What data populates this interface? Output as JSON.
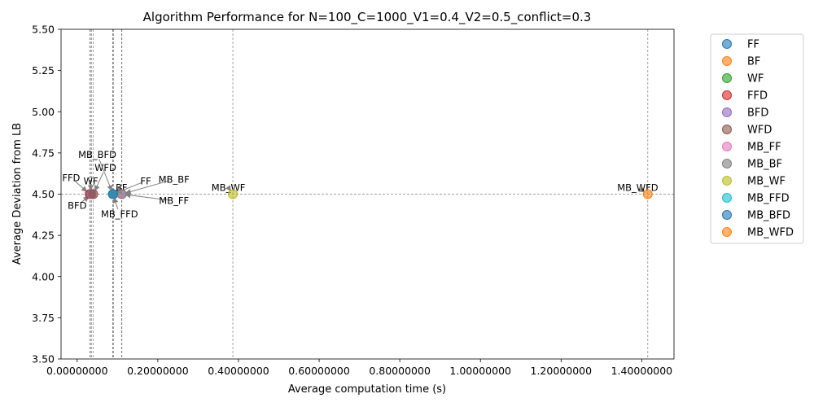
{
  "chart_data": {
    "type": "scatter",
    "title": "Algorithm Performance for N=100_C=1000_V1=0.4_V2=0.5_conflict=0.3",
    "xlabel": "Average computation time (s)",
    "ylabel": "Average Deviation from LB",
    "xlim": [
      -0.04,
      1.48
    ],
    "ylim": [
      3.5,
      5.5
    ],
    "x_ticks": [
      0.0,
      0.2,
      0.4,
      0.6,
      0.8,
      1.0,
      1.2,
      1.4
    ],
    "x_tick_labels": [
      "0.00000000",
      "0.20000000",
      "0.40000000",
      "0.60000000",
      "0.80000000",
      "1.00000000",
      "1.20000000",
      "1.40000000"
    ],
    "y_ticks": [
      3.5,
      3.75,
      4.0,
      4.25,
      4.5,
      4.75,
      5.0,
      5.25,
      5.5
    ],
    "y_tick_labels": [
      "3.50",
      "3.75",
      "4.00",
      "4.25",
      "4.50",
      "4.75",
      "5.00",
      "5.25",
      "5.50"
    ],
    "grid": "dashed reference lines through each point",
    "legend_position": "outside right",
    "series": [
      {
        "name": "FF",
        "x": 0.089,
        "y": 4.5,
        "color": "#1f77b4",
        "label": "FF",
        "label_x": 0.17,
        "label_y": 4.58
      },
      {
        "name": "BF",
        "x": 0.09,
        "y": 4.5,
        "color": "#ff7f0e",
        "label": "BF",
        "label_x": 0.11,
        "label_y": 4.54
      },
      {
        "name": "WF",
        "x": 0.033,
        "y": 4.5,
        "color": "#2ca02c",
        "label": "WF",
        "label_x": 0.034,
        "label_y": 4.58
      },
      {
        "name": "FFD",
        "x": 0.031,
        "y": 4.5,
        "color": "#d62728",
        "label": "FFD",
        "label_x": -0.015,
        "label_y": 4.6
      },
      {
        "name": "BFD",
        "x": 0.036,
        "y": 4.5,
        "color": "#9467bd",
        "label": "BFD",
        "label_x": 0.0,
        "label_y": 4.43
      },
      {
        "name": "WFD",
        "x": 0.04,
        "y": 4.5,
        "color": "#8c564b",
        "label": "WFD",
        "label_x": 0.07,
        "label_y": 4.66
      },
      {
        "name": "MB_FF",
        "x": 0.11,
        "y": 4.5,
        "color": "#e377c2",
        "label": "MB_FF",
        "label_x": 0.24,
        "label_y": 4.46
      },
      {
        "name": "MB_BF",
        "x": 0.111,
        "y": 4.5,
        "color": "#7f7f7f",
        "label": "MB_BF",
        "label_x": 0.24,
        "label_y": 4.59
      },
      {
        "name": "MB_WF",
        "x": 0.386,
        "y": 4.5,
        "color": "#bcbd22",
        "label": "MB_WF",
        "label_x": 0.375,
        "label_y": 4.54
      },
      {
        "name": "MB_FFD",
        "x": 0.088,
        "y": 4.5,
        "color": "#17becf",
        "label": "MB_FFD",
        "label_x": 0.105,
        "label_y": 4.38
      },
      {
        "name": "MB_BFD",
        "x": 0.089,
        "y": 4.5,
        "color": "#1f77b4",
        "label": "MB_BFD",
        "label_x": 0.05,
        "label_y": 4.74
      },
      {
        "name": "MB_WFD",
        "x": 1.415,
        "y": 4.5,
        "color": "#ff7f0e",
        "label": "MB_WFD",
        "label_x": 1.39,
        "label_y": 4.54
      }
    ]
  }
}
